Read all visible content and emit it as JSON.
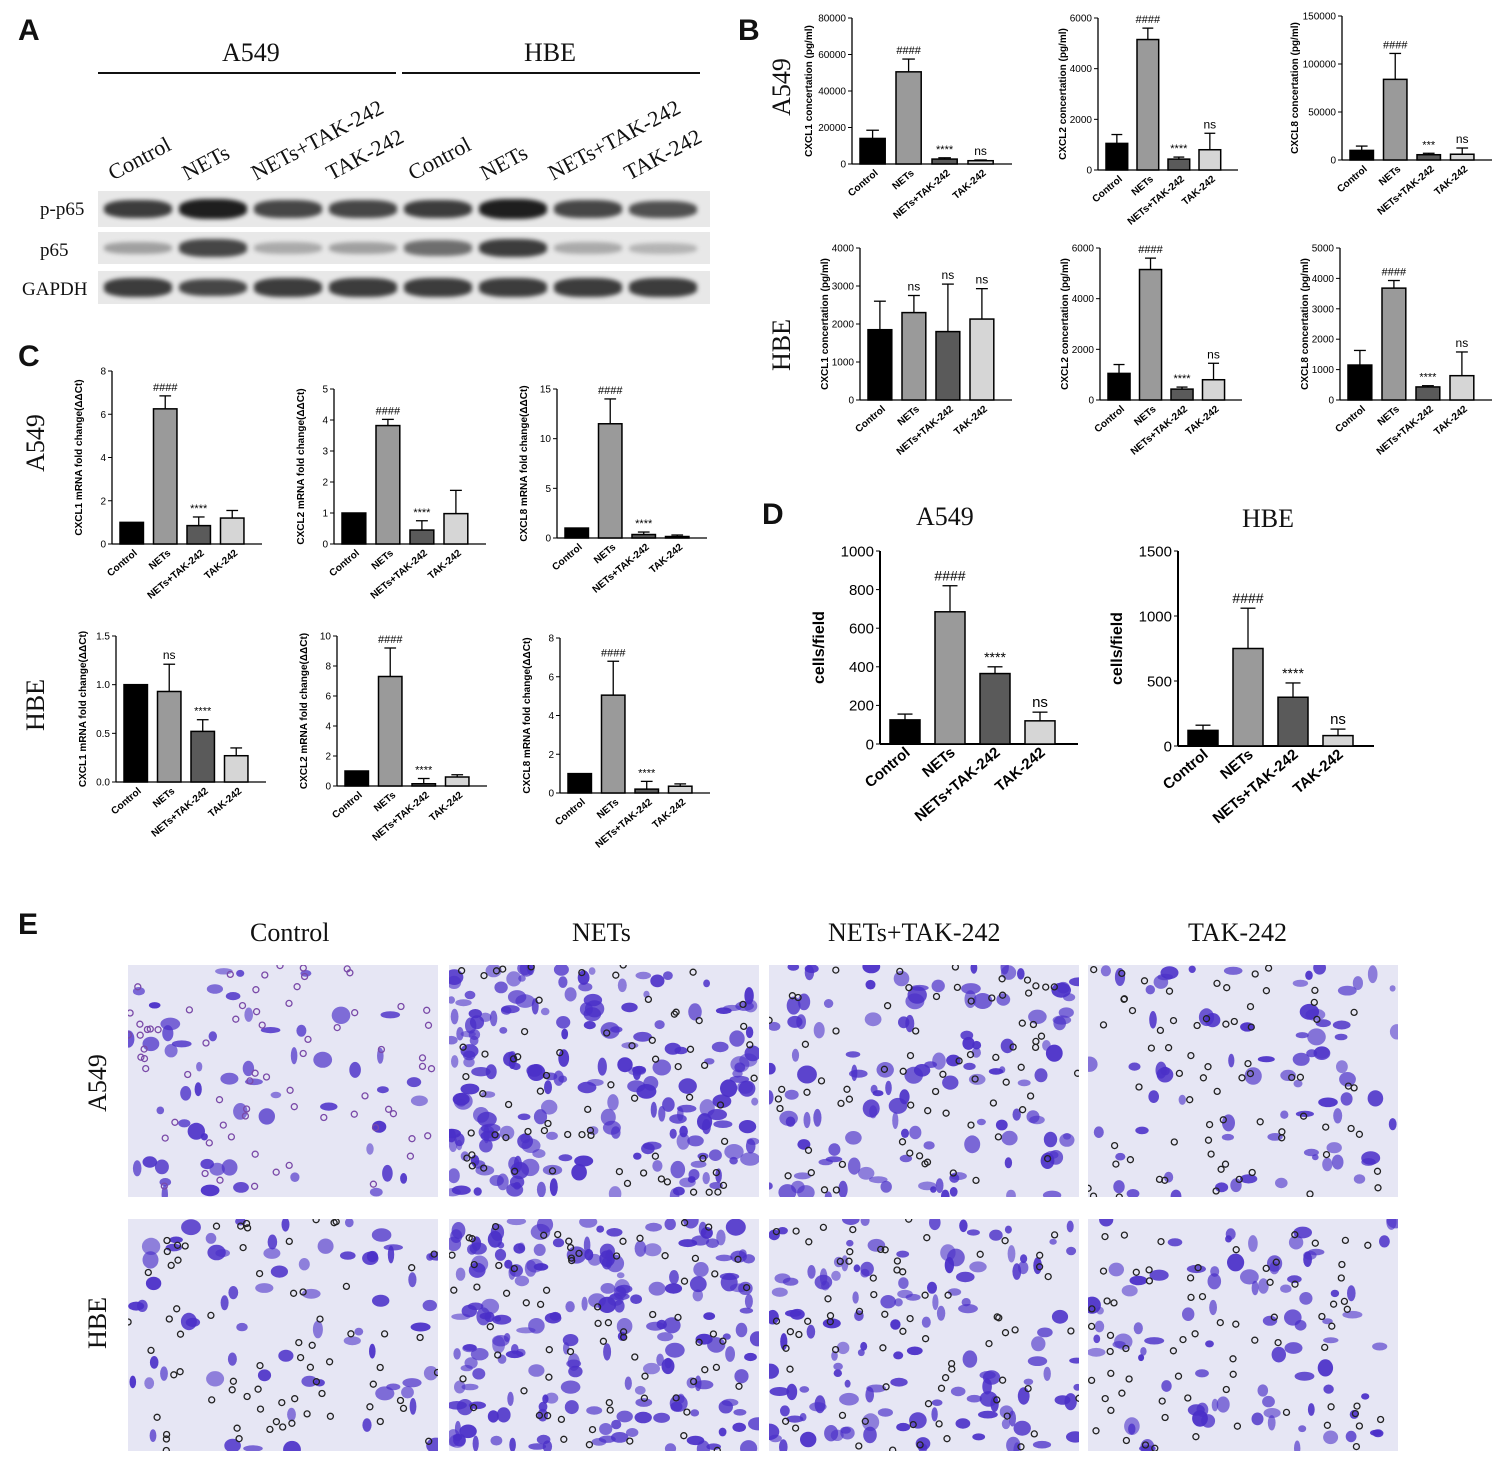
{
  "panel_labels": [
    "A",
    "B",
    "C",
    "D",
    "E"
  ],
  "panel_a": {
    "cell_lines": [
      "A549",
      "HBE"
    ],
    "lanes": [
      "Control",
      "NETs",
      "NETs+TAK-242",
      "TAK-242",
      "Control",
      "NETs",
      "NETs+TAK-242",
      "TAK-242"
    ],
    "bands": [
      {
        "name": "p-p65",
        "intensity": [
          0.85,
          1.0,
          0.8,
          0.8,
          0.85,
          1.0,
          0.8,
          0.75
        ]
      },
      {
        "name": "p65",
        "intensity": [
          0.35,
          0.8,
          0.3,
          0.35,
          0.6,
          0.85,
          0.3,
          0.25
        ]
      },
      {
        "name": "GAPDH",
        "intensity": [
          0.85,
          0.8,
          0.85,
          0.85,
          0.85,
          0.85,
          0.85,
          0.85
        ]
      }
    ]
  },
  "charts_b": {
    "row_labels": [
      "A549",
      "HBE"
    ],
    "chart_data": [
      {
        "type": "bar",
        "categories": [
          "Control",
          "NETs",
          "NETs+TAK-242",
          "TAK-242"
        ],
        "values": [
          14000,
          50500,
          2700,
          1800
        ],
        "errors": [
          4500,
          7000,
          700,
          400
        ],
        "ylabel": "CXCL1 concertation (pg/ml)",
        "ylim": [
          0,
          80000
        ],
        "ticks": [
          "0",
          "20000",
          "40000",
          "60000",
          "80000"
        ],
        "annotations": [
          "",
          "####",
          "****",
          "ns"
        ]
      },
      {
        "type": "bar",
        "categories": [
          "Control",
          "NETs",
          "NETs+TAK-242",
          "TAK-242"
        ],
        "values": [
          1050,
          5150,
          430,
          800
        ],
        "errors": [
          350,
          450,
          80,
          650
        ],
        "ylabel": "CXCL2 concertation (pg/ml)",
        "ylim": [
          0,
          6000
        ],
        "ticks": [
          "0",
          "2000",
          "4000",
          "6000"
        ],
        "annotations": [
          "",
          "####",
          "****",
          "ns"
        ]
      },
      {
        "type": "bar",
        "categories": [
          "Control",
          "NETs",
          "NETs+TAK-242",
          "TAK-242"
        ],
        "values": [
          10000,
          84000,
          5500,
          6000
        ],
        "errors": [
          4500,
          27000,
          1500,
          6500
        ],
        "ylabel": "CXCL8 concertation (pg/ml)",
        "ylim": [
          0,
          150000
        ],
        "ticks": [
          "0",
          "50000",
          "100000",
          "150000"
        ],
        "annotations": [
          "",
          "####",
          "***",
          "ns"
        ]
      },
      {
        "type": "bar",
        "categories": [
          "Control",
          "NETs",
          "NETs+TAK-242",
          "TAK-242"
        ],
        "values": [
          1850,
          2300,
          1800,
          2130
        ],
        "errors": [
          750,
          450,
          1250,
          800
        ],
        "ylabel": "CXCL1 concertation (pg/ml)",
        "ylim": [
          0,
          4000
        ],
        "ticks": [
          "0",
          "1000",
          "2000",
          "3000",
          "4000"
        ],
        "annotations": [
          "",
          "ns",
          "ns",
          "ns"
        ]
      },
      {
        "type": "bar",
        "categories": [
          "Control",
          "NETs",
          "NETs+TAK-242",
          "TAK-242"
        ],
        "values": [
          1050,
          5150,
          430,
          800
        ],
        "errors": [
          350,
          450,
          80,
          650
        ],
        "ylabel": "CXCL2 concertation (pg/ml)",
        "ylim": [
          0,
          6000
        ],
        "ticks": [
          "0",
          "2000",
          "4000",
          "6000"
        ],
        "annotations": [
          "",
          "####",
          "****",
          "ns"
        ]
      },
      {
        "type": "bar",
        "categories": [
          "Control",
          "NETs",
          "NETs+TAK-242",
          "TAK-242"
        ],
        "values": [
          1150,
          3680,
          430,
          800
        ],
        "errors": [
          480,
          250,
          40,
          780
        ],
        "ylabel": "CXCL8 concertation (pg/ml)",
        "ylim": [
          0,
          5000
        ],
        "ticks": [
          "0",
          "1000",
          "2000",
          "3000",
          "4000",
          "5000"
        ],
        "annotations": [
          "",
          "####",
          "****",
          "ns"
        ]
      }
    ]
  },
  "charts_c": {
    "row_labels": [
      "A549",
      "HBE"
    ],
    "chart_data": [
      {
        "type": "bar",
        "categories": [
          "Control",
          "NETs",
          "NETs+TAK-242",
          "TAK-242"
        ],
        "values": [
          1.0,
          6.25,
          0.85,
          1.2
        ],
        "errors": [
          0,
          0.6,
          0.4,
          0.35
        ],
        "ylabel": "CXCL1 mRNA fold change(ΔΔCt)",
        "ylim": [
          0,
          8
        ],
        "ticks": [
          "0",
          "2",
          "4",
          "6",
          "8"
        ],
        "annotations": [
          "",
          "####",
          "****",
          ""
        ]
      },
      {
        "type": "bar",
        "categories": [
          "Control",
          "NETs",
          "NETs+TAK-242",
          "TAK-242"
        ],
        "values": [
          1.0,
          3.82,
          0.45,
          0.98
        ],
        "errors": [
          0,
          0.2,
          0.3,
          0.75
        ],
        "ylabel": "CXCL2 mRNA fold change(ΔΔCt)",
        "ylim": [
          0,
          5
        ],
        "ticks": [
          "0",
          "1",
          "2",
          "3",
          "4",
          "5"
        ],
        "annotations": [
          "",
          "####",
          "****",
          ""
        ]
      },
      {
        "type": "bar",
        "categories": [
          "Control",
          "NETs",
          "NETs+TAK-242",
          "TAK-242"
        ],
        "values": [
          1.0,
          11.5,
          0.35,
          0.15
        ],
        "errors": [
          0,
          2.5,
          0.25,
          0.15
        ],
        "ylabel": "CXCL8 mRNA fold change(ΔΔCt)",
        "ylim": [
          0,
          15
        ],
        "ticks": [
          "0",
          "5",
          "10",
          "15"
        ],
        "annotations": [
          "",
          "####",
          "****",
          ""
        ]
      },
      {
        "type": "bar",
        "categories": [
          "Control",
          "NETs",
          "NETs+TAK-242",
          "TAK-242"
        ],
        "values": [
          1.0,
          0.93,
          0.52,
          0.27
        ],
        "errors": [
          0,
          0.28,
          0.12,
          0.08
        ],
        "ylabel": "CXCL1 mRNA fold change(ΔΔCt)",
        "ylim": [
          0,
          1.5
        ],
        "ticks": [
          "0.0",
          "0.5",
          "1.0",
          "1.5"
        ],
        "annotations": [
          "",
          "ns",
          "****",
          ""
        ]
      },
      {
        "type": "bar",
        "categories": [
          "Control",
          "NETs",
          "NETs+TAK-242",
          "TAK-242"
        ],
        "values": [
          1.0,
          7.3,
          0.15,
          0.6
        ],
        "errors": [
          0,
          1.9,
          0.35,
          0.15
        ],
        "ylabel": "CXCL2 mRNA fold change(ΔΔCt)",
        "ylim": [
          0,
          10
        ],
        "ticks": [
          "0",
          "2",
          "4",
          "6",
          "8",
          "10"
        ],
        "annotations": [
          "",
          "####",
          "****",
          ""
        ]
      },
      {
        "type": "bar",
        "categories": [
          "Control",
          "NETs",
          "NETs+TAK-242",
          "TAK-242"
        ],
        "values": [
          1.0,
          5.05,
          0.2,
          0.35
        ],
        "errors": [
          0,
          1.75,
          0.4,
          0.12
        ],
        "ylabel": "CXCL8 mRNA fold change(ΔΔCt)",
        "ylim": [
          0,
          8
        ],
        "ticks": [
          "0",
          "2",
          "4",
          "6",
          "8"
        ],
        "annotations": [
          "",
          "####",
          "****",
          ""
        ]
      }
    ]
  },
  "charts_d": {
    "chart_data": [
      {
        "type": "bar",
        "title": "A549",
        "categories": [
          "Control",
          "NETs",
          "NETs+TAK-242",
          "TAK-242"
        ],
        "values": [
          125,
          685,
          365,
          120
        ],
        "errors": [
          30,
          135,
          35,
          45
        ],
        "ylabel": "cells/field",
        "ylim": [
          0,
          1000
        ],
        "ticks": [
          "0",
          "200",
          "400",
          "600",
          "800",
          "1000"
        ],
        "annotations": [
          "",
          "####",
          "****",
          "ns"
        ]
      },
      {
        "type": "bar",
        "title": "HBE",
        "categories": [
          "Control",
          "NETs",
          "NETs+TAK-242",
          "TAK-242"
        ],
        "values": [
          120,
          750,
          375,
          80
        ],
        "errors": [
          40,
          310,
          110,
          50
        ],
        "ylabel": "cells/field",
        "ylim": [
          0,
          1500
        ],
        "ticks": [
          "0",
          "500",
          "1000",
          "1500"
        ],
        "annotations": [
          "",
          "####",
          "****",
          "ns"
        ]
      }
    ]
  },
  "bar_colors": [
    "#000000",
    "#9a9a9a",
    "#5a5a5a",
    "#d6d6d6"
  ],
  "panel_e": {
    "columns": [
      "Control",
      "NETs",
      "NETs+TAK-242",
      "TAK-242"
    ],
    "rows": [
      "A549",
      "HBE"
    ],
    "density": [
      [
        0.2,
        1.0,
        0.55,
        0.3
      ],
      [
        0.25,
        0.95,
        0.6,
        0.35
      ]
    ],
    "stain_color": "#4a2fc8",
    "pore_color": "#222222",
    "background": "#e6e6f4"
  }
}
